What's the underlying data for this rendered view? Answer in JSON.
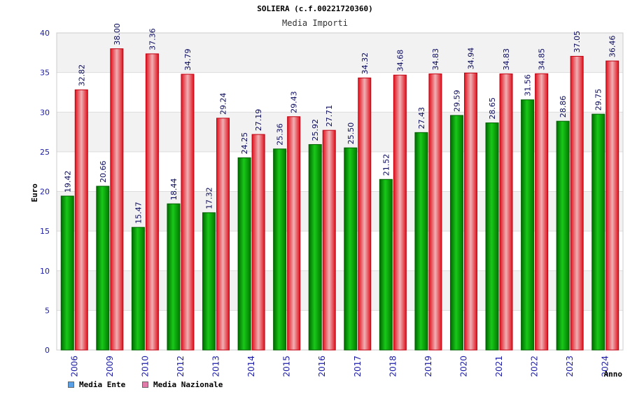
{
  "chart_data": {
    "type": "bar",
    "title": "SOLIERA (c.f.00221720360)",
    "subtitle": "Media Importi",
    "xlabel": "Anno",
    "ylabel": "Euro",
    "ylim": [
      0,
      40
    ],
    "yticks": [
      0,
      5,
      10,
      15,
      20,
      25,
      30,
      35,
      40
    ],
    "categories": [
      "2006",
      "2009",
      "2010",
      "2012",
      "2013",
      "2014",
      "2015",
      "2016",
      "2017",
      "2018",
      "2019",
      "2020",
      "2021",
      "2022",
      "2023",
      "2024"
    ],
    "series": [
      {
        "name": "Media Ente",
        "values": [
          19.42,
          20.66,
          15.47,
          18.44,
          17.32,
          24.25,
          25.36,
          25.92,
          25.5,
          21.52,
          27.43,
          29.59,
          28.65,
          31.56,
          28.86,
          29.75
        ],
        "labels": [
          "19.42",
          "20.66",
          "15.47",
          "18.44",
          "17.32",
          "24.25",
          "25.36",
          "25.92",
          "25.50",
          "21.52",
          "27.43",
          "29.59",
          "28.65",
          "31.56",
          "28.86",
          "29.75"
        ],
        "color": "#00b000",
        "legend_color": "#5aa0e6"
      },
      {
        "name": "Media Nazionale",
        "values": [
          32.82,
          38.0,
          37.36,
          34.79,
          29.24,
          27.19,
          29.43,
          27.71,
          34.32,
          34.68,
          34.83,
          34.94,
          34.83,
          34.85,
          37.05,
          36.46
        ],
        "labels": [
          "32.82",
          "38.00",
          "37.36",
          "34.79",
          "29.24",
          "27.19",
          "29.43",
          "27.71",
          "34.32",
          "34.68",
          "34.83",
          "34.94",
          "34.83",
          "34.85",
          "37.05",
          "36.46"
        ],
        "color": "#e0202a",
        "legend_color": "#e07aa8"
      }
    ],
    "grid": true,
    "legend_position": "bottom-left"
  }
}
